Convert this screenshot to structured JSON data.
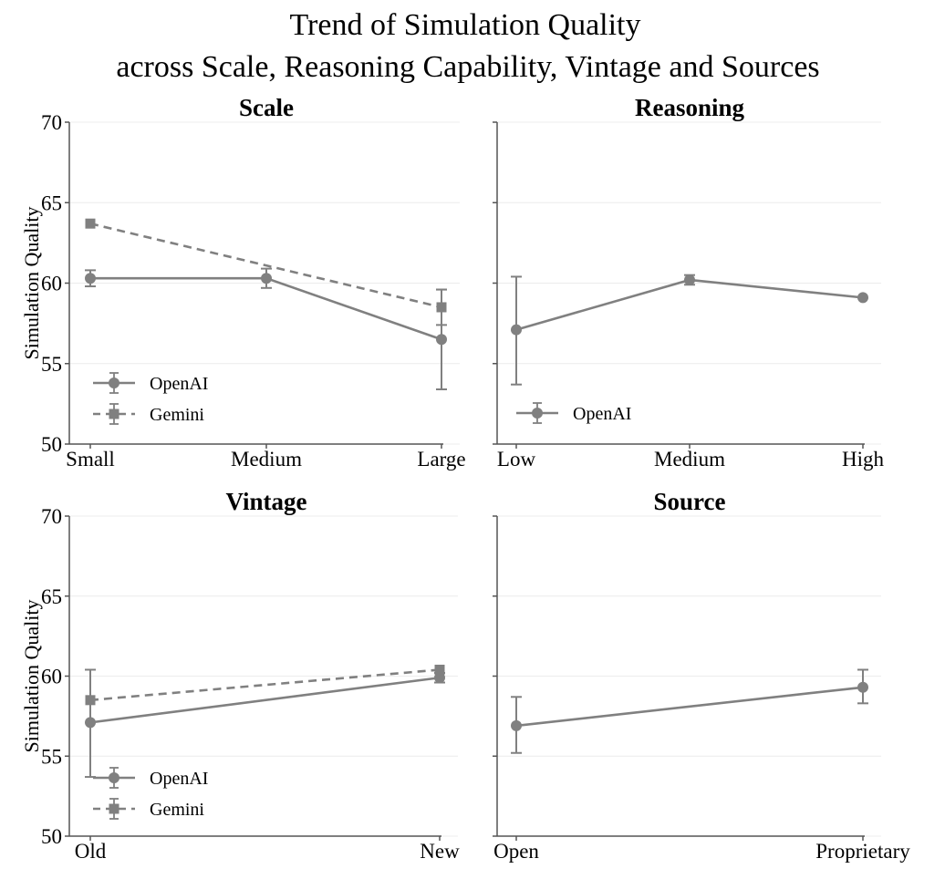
{
  "title_line1": "Trend of Simulation Quality",
  "title_line2": "across Scale, Reasoning Capability, Vintage and Sources",
  "colors": {
    "series": "#808080",
    "axis": "#555555",
    "grid": "#ececec"
  },
  "chart_data": [
    {
      "type": "line",
      "title": "Scale",
      "ylabel": "Simulation Quality",
      "xlabel": "",
      "ylim": [
        50,
        70
      ],
      "yticks": [
        "50",
        "55",
        "60",
        "65",
        "70"
      ],
      "categories": [
        "Small",
        "Medium",
        "Large"
      ],
      "legend": "bottom-left",
      "series": [
        {
          "name": "OpenAI",
          "marker": "circle",
          "dash": false,
          "values": [
            60.3,
            60.3,
            56.5
          ],
          "error_low": [
            59.8,
            59.7,
            53.4
          ],
          "error_high": [
            60.8,
            60.9,
            59.6
          ]
        },
        {
          "name": "Gemini",
          "marker": "square",
          "dash": true,
          "values": [
            63.7,
            null,
            58.5
          ],
          "error_low": [
            null,
            null,
            57.4
          ],
          "error_high": [
            null,
            null,
            59.6
          ]
        }
      ]
    },
    {
      "type": "line",
      "title": "Reasoning",
      "ylabel": "",
      "xlabel": "",
      "ylim": [
        50,
        70
      ],
      "categories": [
        "Low",
        "Medium",
        "High"
      ],
      "legend": "bottom-left",
      "series": [
        {
          "name": "OpenAI",
          "marker": "circle",
          "dash": false,
          "values": [
            57.1,
            60.2,
            59.1
          ],
          "error_low": [
            53.7,
            59.9,
            null
          ],
          "error_high": [
            60.4,
            60.5,
            null
          ]
        }
      ]
    },
    {
      "type": "line",
      "title": "Vintage",
      "ylabel": "Simulation Quality",
      "xlabel": "",
      "ylim": [
        50,
        70
      ],
      "yticks": [
        "50",
        "55",
        "60",
        "65",
        "70"
      ],
      "categories": [
        "Old",
        "New"
      ],
      "legend": "bottom-left",
      "series": [
        {
          "name": "OpenAI",
          "marker": "circle",
          "dash": false,
          "values": [
            57.1,
            59.9
          ],
          "error_low": [
            53.7,
            59.6
          ],
          "error_high": [
            60.4,
            60.2
          ]
        },
        {
          "name": "Gemini",
          "marker": "square",
          "dash": true,
          "values": [
            58.5,
            60.4
          ],
          "error_low": [
            null,
            null
          ],
          "error_high": [
            null,
            null
          ]
        }
      ]
    },
    {
      "type": "line",
      "title": "Source",
      "ylabel": "",
      "xlabel": "",
      "ylim": [
        50,
        70
      ],
      "categories": [
        "Open",
        "Proprietary"
      ],
      "legend": "none",
      "series": [
        {
          "name": "OpenAI",
          "marker": "circle",
          "dash": false,
          "values": [
            56.9,
            59.3
          ],
          "error_low": [
            55.2,
            58.3
          ],
          "error_high": [
            58.7,
            60.4
          ]
        }
      ]
    }
  ]
}
